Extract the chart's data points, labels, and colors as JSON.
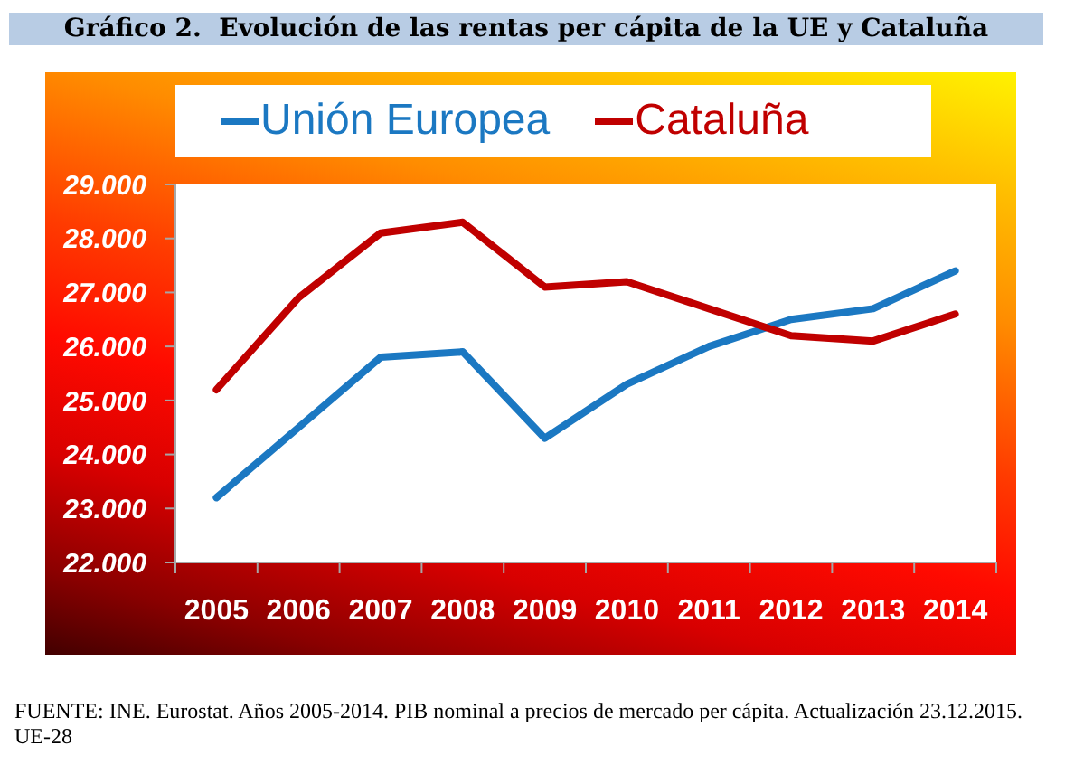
{
  "chart_data": {
    "type": "line",
    "title": "Gráfico 2.  Evolución de las rentas per cápita de la UE y Cataluña",
    "annotations": [
      "FUENTE: INE. Eurostat. Años 2005-2014. PIB nominal a precios de mercado per cápita. Actualización 23.12.2015. UE-28"
    ],
    "categories": [
      "2005",
      "2006",
      "2007",
      "2008",
      "2009",
      "2010",
      "2011",
      "2012",
      "2013",
      "2014"
    ],
    "series": [
      {
        "name": "Unión Europea",
        "color": "#1b78c2",
        "values": [
          23200,
          24500,
          25800,
          25900,
          24300,
          25300,
          26000,
          26500,
          26700,
          27400
        ]
      },
      {
        "name": "Cataluña",
        "color": "#c00000",
        "values": [
          25200,
          26900,
          28100,
          28300,
          27100,
          27200,
          26700,
          26200,
          26100,
          26600
        ]
      }
    ],
    "ylim": [
      22000,
      29000
    ],
    "yticks": [
      {
        "value": 22000,
        "label": "22.000"
      },
      {
        "value": 23000,
        "label": "23.000"
      },
      {
        "value": 24000,
        "label": "24.000"
      },
      {
        "value": 25000,
        "label": "25.000"
      },
      {
        "value": 26000,
        "label": "26.000"
      },
      {
        "value": 27000,
        "label": "27.000"
      },
      {
        "value": 28000,
        "label": "28.000"
      },
      {
        "value": 29000,
        "label": "29.000"
      }
    ],
    "legend": "top",
    "marker": "none",
    "line_style": "solid"
  }
}
